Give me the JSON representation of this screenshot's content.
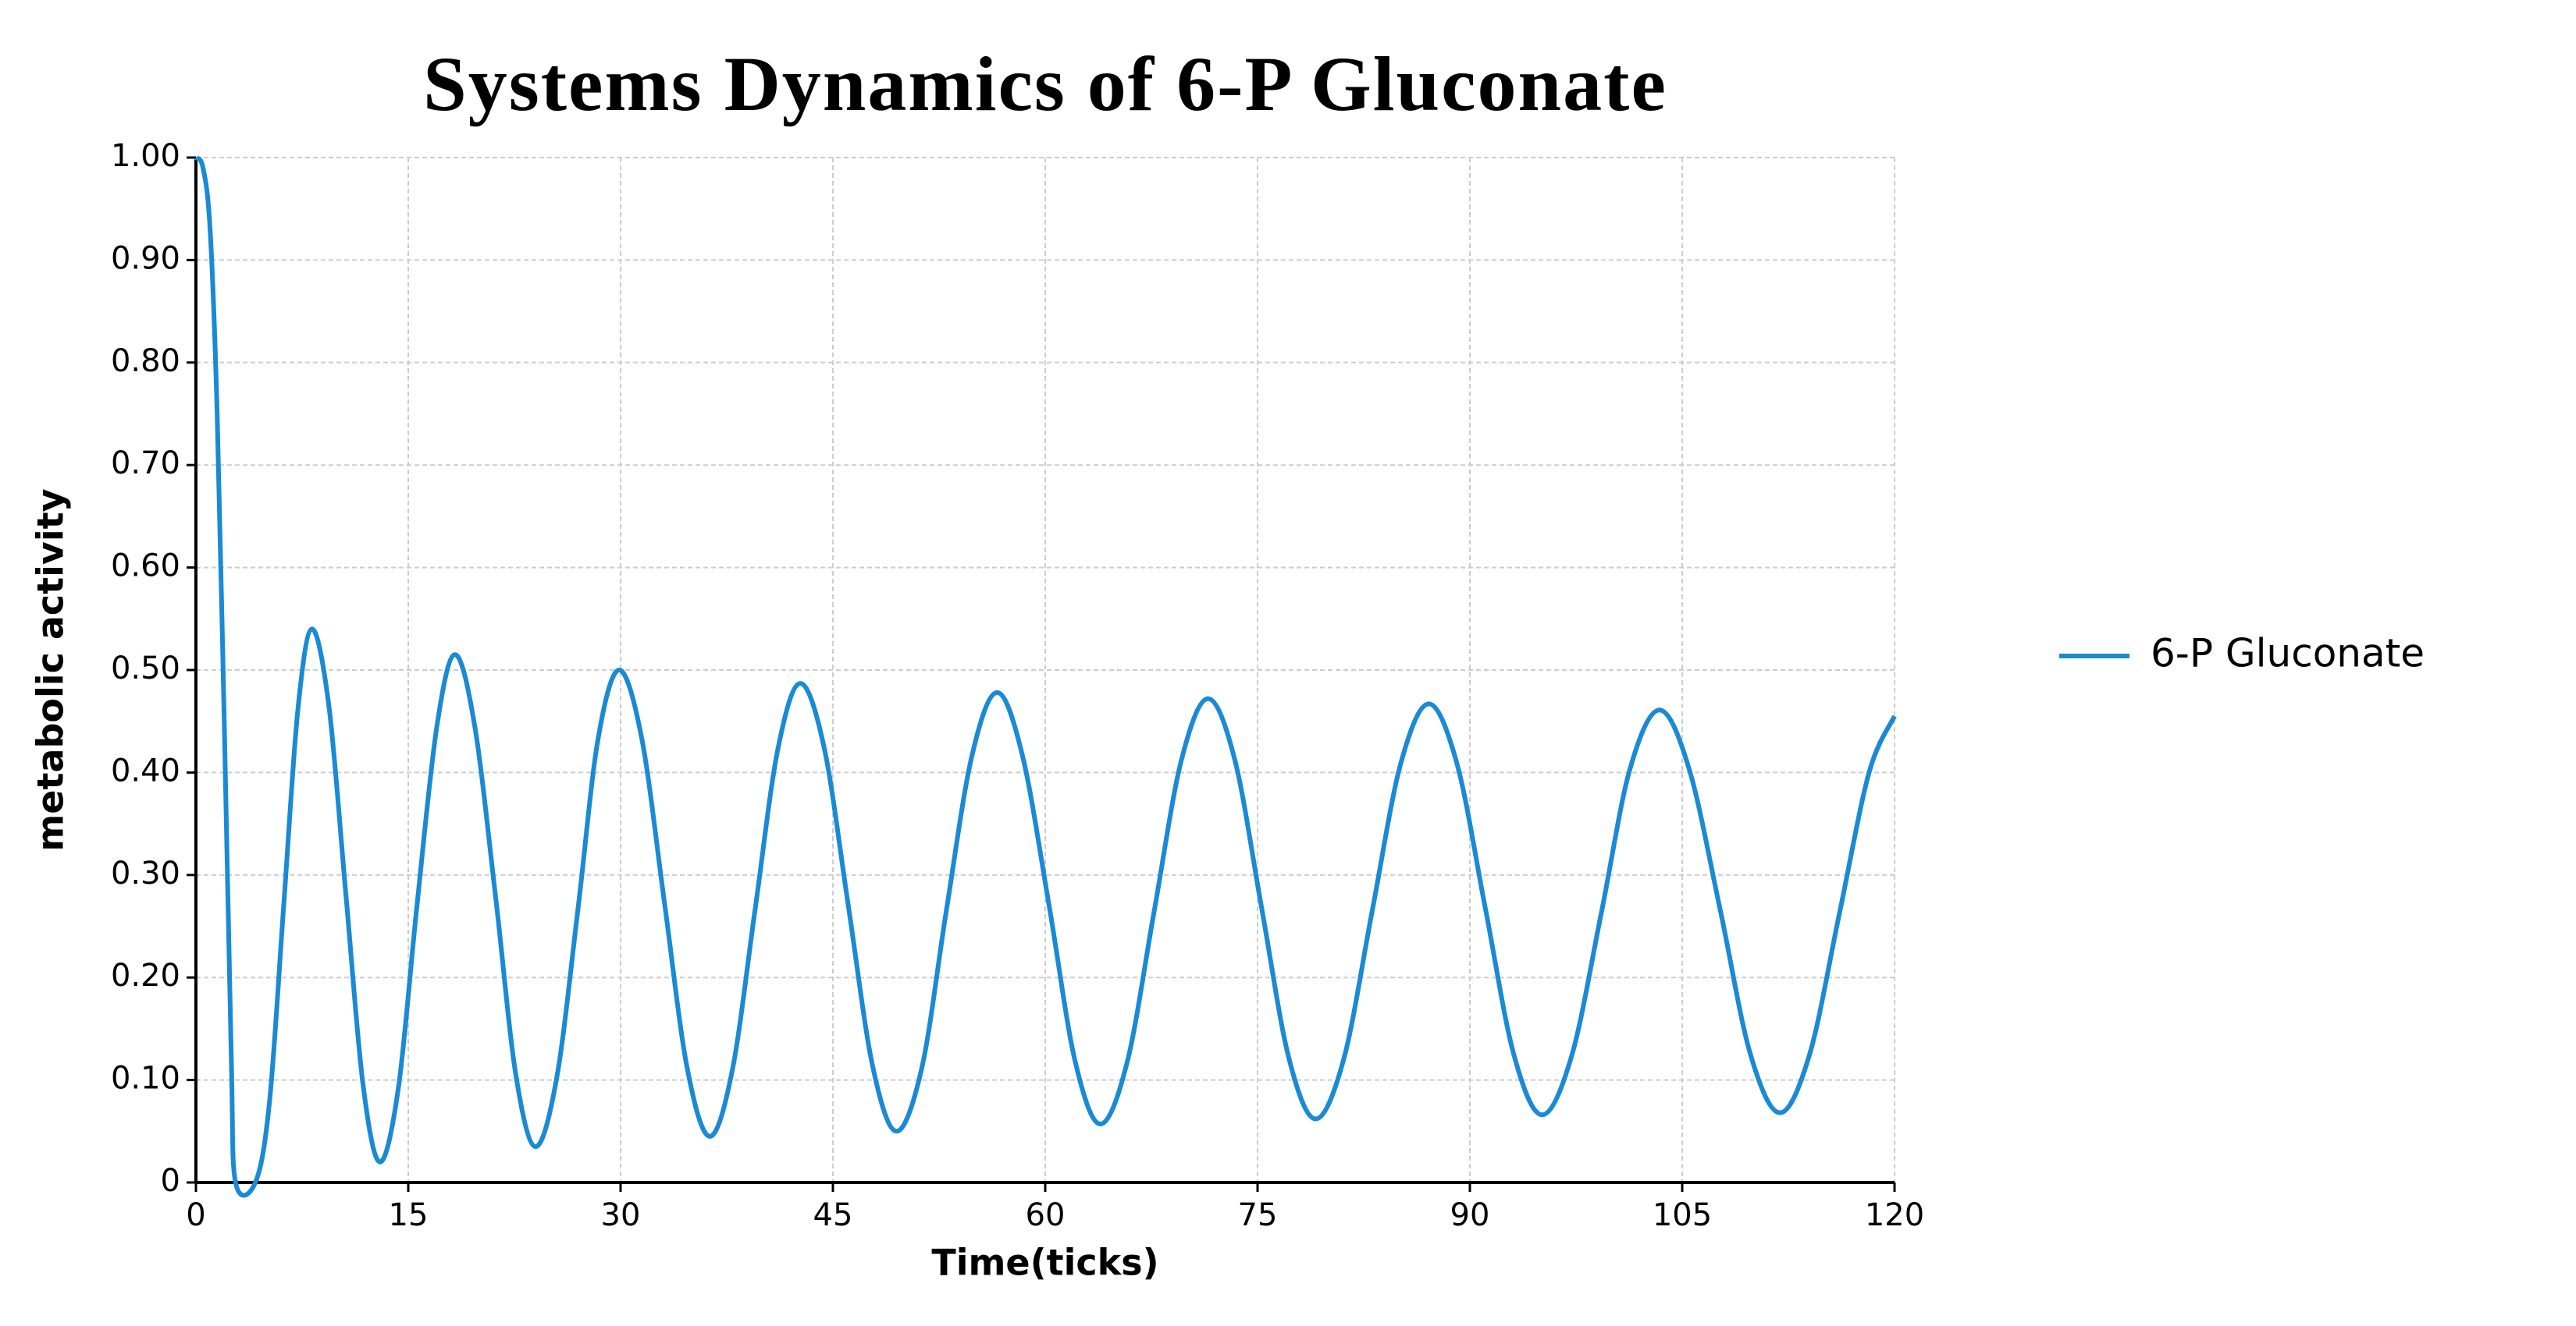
{
  "chart_data": {
    "type": "line",
    "title": "Systems Dynamics of 6-P Gluconate",
    "x_label": "Time(ticks)",
    "y_label": "metabolic activity",
    "xlim": [
      0,
      120
    ],
    "ylim": [
      0,
      1
    ],
    "xticks": [
      0,
      15,
      30,
      45,
      60,
      75,
      90,
      105,
      120
    ],
    "yticks": [
      {
        "value": 0,
        "label": "0"
      },
      {
        "value": 0.1,
        "label": "0.10"
      },
      {
        "value": 0.2,
        "label": "0.20"
      },
      {
        "value": 0.3,
        "label": "0.30"
      },
      {
        "value": 0.4,
        "label": "0.40"
      },
      {
        "value": 0.5,
        "label": "0.50"
      },
      {
        "value": 0.6,
        "label": "0.60"
      },
      {
        "value": 0.7,
        "label": "0.70"
      },
      {
        "value": 0.8,
        "label": "0.80"
      },
      {
        "value": 0.9,
        "label": "0.90"
      },
      {
        "value": 1,
        "label": "1.00"
      }
    ],
    "grid": true,
    "legend": "right",
    "x": [
      0,
      0.5,
      1,
      1.5,
      2,
      2.5,
      2.8,
      4.2,
      5.2,
      6.2,
      7.2,
      8.2,
      9.4,
      10.6,
      11.8,
      13,
      14.3,
      15.6,
      17,
      18.3,
      19.7,
      21.2,
      22.6,
      24,
      25.5,
      27,
      28.4,
      29.9,
      31.5,
      33.1,
      34.7,
      36.3,
      37.9,
      39.5,
      41.1,
      42.7,
      44.4,
      46.1,
      47.8,
      49.5,
      51.3,
      53,
      54.8,
      56.6,
      58.4,
      60.3,
      62.1,
      63.9,
      65.8,
      67.7,
      69.6,
      71.5,
      73.4,
      75.3,
      77.2,
      79.1,
      81.1,
      83.1,
      85.1,
      87.1,
      89.1,
      91.1,
      93.1,
      95.1,
      97.2,
      99.3,
      101.3,
      103.4,
      105.5,
      107.7,
      109.8,
      111.9,
      114,
      116.1,
      118.2,
      120
    ],
    "series": [
      {
        "name": "6-P Gluconate",
        "color": "#1a8ad4",
        "values": [
          1.0,
          0.99,
          0.93,
          0.75,
          0.45,
          0.12,
          0,
          0,
          0.079,
          0.27,
          0.461,
          0.54,
          0.464,
          0.28,
          0.096,
          0.02,
          0.092,
          0.268,
          0.443,
          0.515,
          0.445,
          0.275,
          0.105,
          0.035,
          0.103,
          0.268,
          0.432,
          0.5,
          0.433,
          0.273,
          0.112,
          0.045,
          0.11,
          0.266,
          0.422,
          0.487,
          0.423,
          0.269,
          0.114,
          0.05,
          0.113,
          0.264,
          0.415,
          0.478,
          0.416,
          0.268,
          0.119,
          0.057,
          0.118,
          0.265,
          0.411,
          0.472,
          0.412,
          0.267,
          0.122,
          0.062,
          0.121,
          0.265,
          0.408,
          0.467,
          0.408,
          0.267,
          0.125,
          0.066,
          0.124,
          0.264,
          0.403,
          0.461,
          0.403,
          0.265,
          0.126,
          0.068,
          0.125,
          0.262,
          0.4,
          0.455
        ]
      }
    ]
  }
}
